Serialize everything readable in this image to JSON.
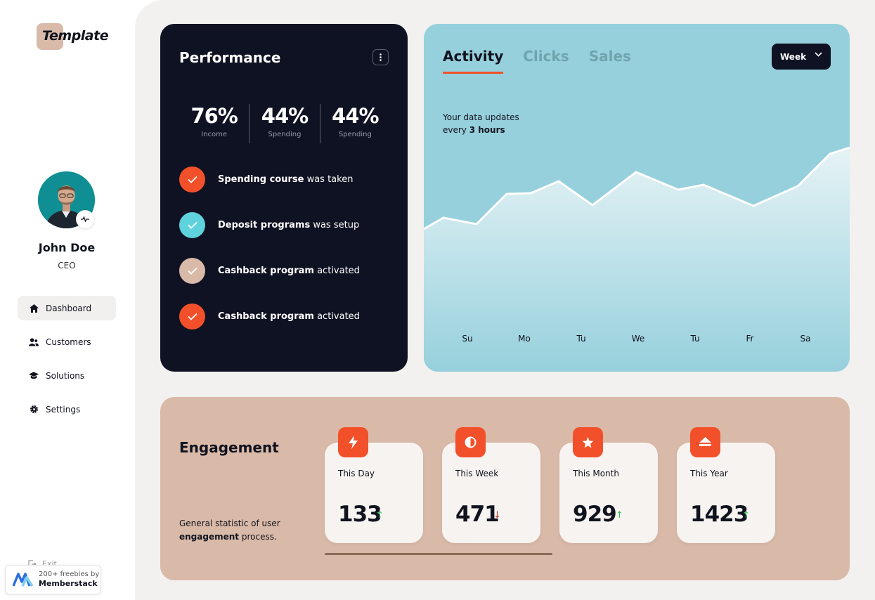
{
  "logo": {
    "text": "Template"
  },
  "user": {
    "name": "John Doe",
    "role": "CEO"
  },
  "nav": {
    "items": [
      {
        "label": "Dashboard",
        "icon": "home-icon",
        "active": true
      },
      {
        "label": "Customers",
        "icon": "users-icon",
        "active": false
      },
      {
        "label": "Solutions",
        "icon": "graduation-cap-icon",
        "active": false
      },
      {
        "label": "Settings",
        "icon": "gear-icon",
        "active": false
      }
    ],
    "exit_label": "Exit"
  },
  "memberstack": {
    "line1": "200+ freebies by",
    "line2": "Memberstack"
  },
  "performance": {
    "title": "Performance",
    "stats": [
      {
        "value": "76%",
        "label": "Income"
      },
      {
        "value": "44%",
        "label": "Spending"
      },
      {
        "value": "44%",
        "label": "Spending"
      }
    ],
    "checklist": [
      {
        "bold": "Spending course",
        "rest": " was taken",
        "color": "#f2502a"
      },
      {
        "bold": "Deposit programs",
        "rest": " was setup",
        "color": "#5fd3dd"
      },
      {
        "bold": "Cashback program",
        "rest": " activated",
        "color": "#d9b9a8"
      },
      {
        "bold": "Cashback program",
        "rest": " activated",
        "color": "#f2502a"
      }
    ]
  },
  "activity": {
    "tabs": [
      "Activity",
      "Clicks",
      "Sales"
    ],
    "active_tab": "Activity",
    "period": "Week",
    "note_line1": "Your data updates",
    "note_line2_prefix": "every ",
    "note_line2_bold": "3 hours",
    "days": [
      "Su",
      "Mo",
      "Tu",
      "We",
      "Tu",
      "Fr",
      "Sa"
    ]
  },
  "engagement": {
    "title": "Engagement",
    "desc_prefix": "General statistic of user ",
    "desc_bold": "engagement",
    "desc_suffix": " process.",
    "tiles": [
      {
        "label": "This Day",
        "value": "133",
        "trend": "up",
        "icon": "lightning-icon"
      },
      {
        "label": "This Week",
        "value": "471",
        "trend": "down",
        "icon": "half-circle-icon"
      },
      {
        "label": "This Month",
        "value": "929",
        "trend": "up",
        "icon": "star-icon"
      },
      {
        "label": "This Year",
        "value": "1423",
        "trend": "up",
        "icon": "double-chevron-up-icon"
      }
    ]
  },
  "colors": {
    "accent": "#f2502a",
    "dark": "#0f1222",
    "teal": "#96d0dc",
    "tan": "#d9b9a8",
    "up": "#2fbf5b",
    "down": "#c0392b"
  }
}
